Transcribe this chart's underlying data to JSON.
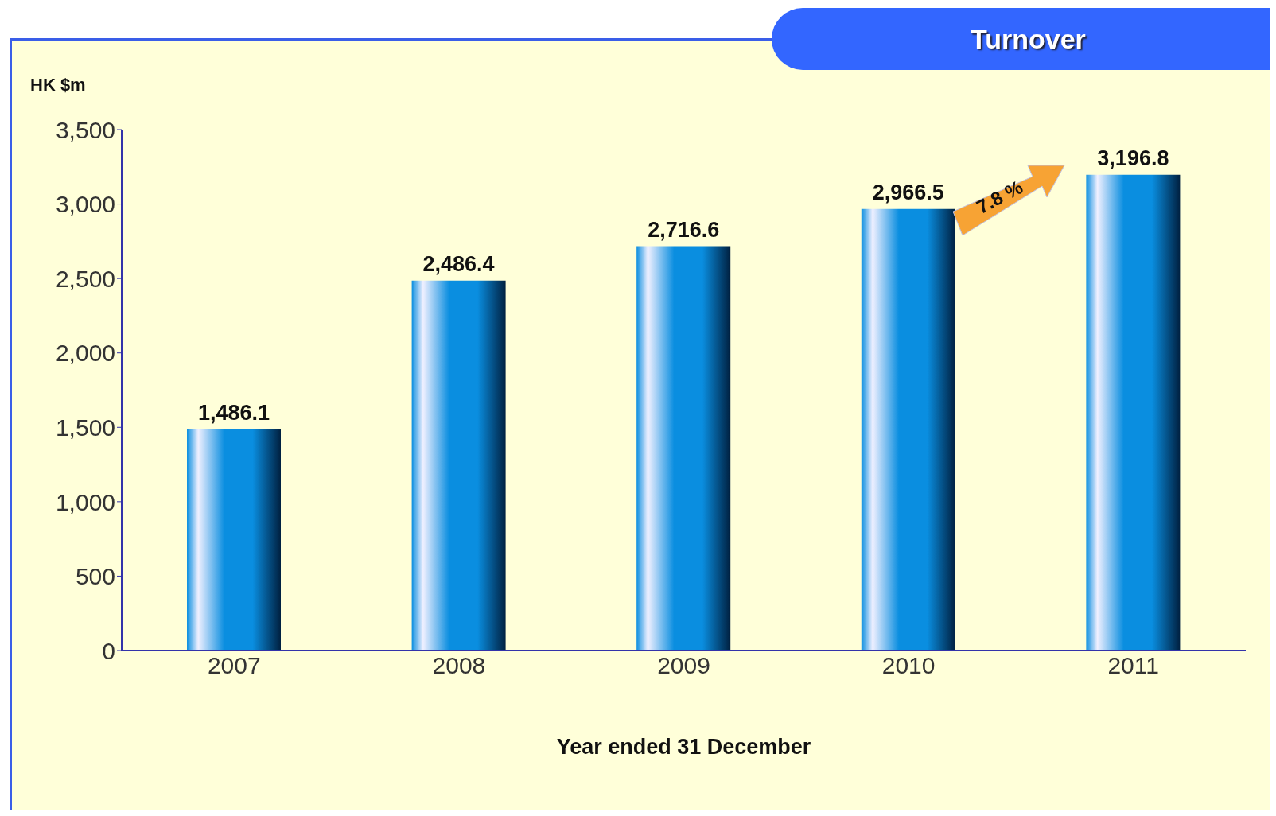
{
  "chart_data": {
    "type": "bar",
    "title": "Turnover",
    "ylabel": "HK $m",
    "xlabel": "Year ended 31 December",
    "categories": [
      "2007",
      "2008",
      "2009",
      "2010",
      "2011"
    ],
    "values": [
      1486.1,
      2486.4,
      2716.6,
      2966.5,
      3196.8
    ],
    "value_labels": [
      "1,486.1",
      "2,486.4",
      "2,716.6",
      "2,966.5",
      "3,196.8"
    ],
    "color": "#0a8ee0",
    "ylim": [
      0,
      3500
    ],
    "yticks": [
      0,
      500,
      {
        "value": 1000,
        "label": "1,000"
      },
      {
        "value": 1500,
        "label": "1,500"
      },
      {
        "value": 2000,
        "label": "2,000"
      },
      {
        "value": 2500,
        "label": "2,500"
      },
      {
        "value": 3000,
        "label": "3,000"
      },
      {
        "value": 3500,
        "label": "3,500"
      }
    ],
    "annotations": [
      "7.8 %"
    ]
  }
}
